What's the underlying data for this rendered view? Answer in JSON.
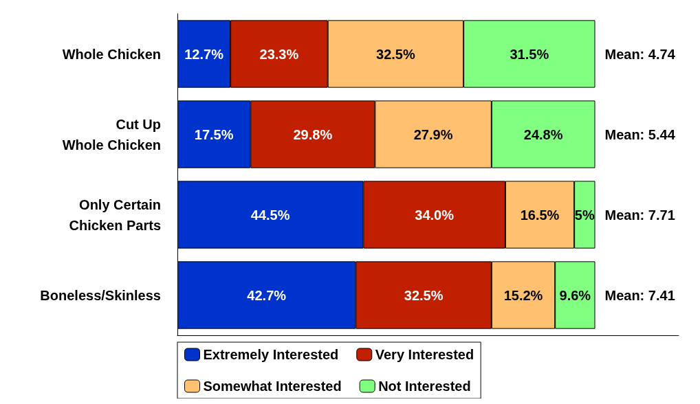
{
  "chart_data": {
    "type": "bar",
    "orientation": "horizontal",
    "stacked": true,
    "categories": [
      "Whole Chicken",
      "Cut Up\nWhole Chicken",
      "Only Certain\nChicken Parts",
      "Boneless/Skinless"
    ],
    "series": [
      {
        "name": "Extremely Interested",
        "color": "#0033cc",
        "values": [
          12.7,
          17.5,
          44.5,
          42.7
        ],
        "value_labels": [
          "12.7%",
          "17.5%",
          "44.5%",
          "42.7%"
        ]
      },
      {
        "name": "Very Interested",
        "color": "#c02000",
        "values": [
          23.3,
          29.8,
          34.0,
          32.5
        ],
        "value_labels": [
          "23.3%",
          "29.8%",
          "34.0%",
          "32.5%"
        ]
      },
      {
        "name": "Somewhat Interested",
        "color": "#ffc070",
        "values": [
          32.5,
          27.9,
          16.5,
          15.2
        ],
        "value_labels": [
          "32.5%",
          "27.9%",
          "16.5%",
          "15.2%"
        ]
      },
      {
        "name": "Not Interested",
        "color": "#80ff80",
        "values": [
          31.5,
          24.8,
          5,
          9.6
        ],
        "value_labels": [
          "31.5%",
          "24.8%",
          "5%",
          "9.6%"
        ]
      }
    ],
    "xlim": [
      0,
      120
    ],
    "tick_labels": "y",
    "grid": false,
    "legend": "bottom",
    "annotations": [
      "Mean: 4.74",
      "Mean: 5.44",
      "Mean: 7.71",
      "Mean: 7.41"
    ]
  }
}
